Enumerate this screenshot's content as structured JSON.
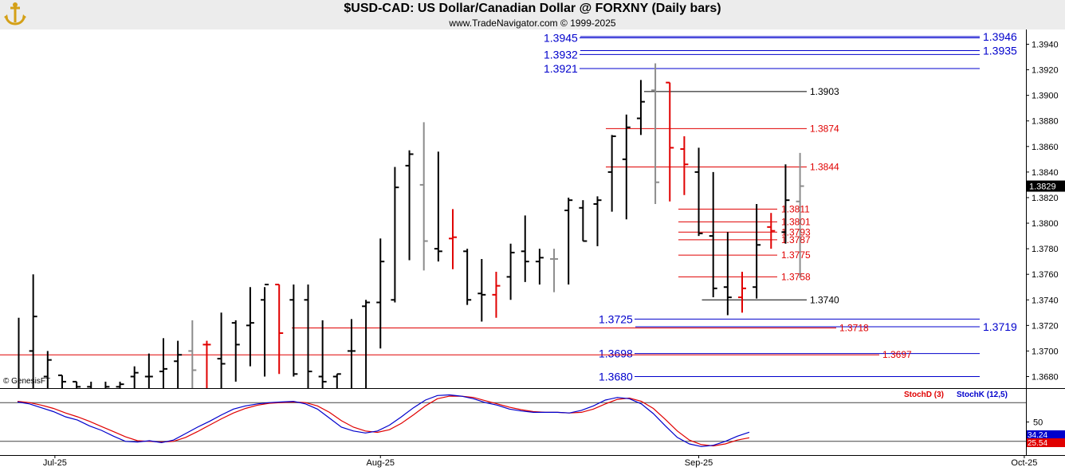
{
  "header": {
    "title": "$USD-CAD:  US Dollar/Canadian Dollar @ FORXNY  (Daily bars)",
    "subtitle": "www.TradeNavigator.com © 1999-2025"
  },
  "copyright": "© GenesisFT",
  "colors": {
    "black": "#000000",
    "red": "#e00000",
    "grey": "#8c8c8c",
    "blue": "#0000cc",
    "stochD": "#e00000",
    "stochK": "#0000cc"
  },
  "chart_data": {
    "type": "ohlc-bar",
    "price_axis": {
      "ylim": [
        1.3668,
        1.3952
      ],
      "ticks": [
        "1.3940",
        "1.3920",
        "1.3900",
        "1.3880",
        "1.3860",
        "1.3840",
        "1.3820",
        "1.3800",
        "1.3780",
        "1.3760",
        "1.3740",
        "1.3720",
        "1.3700",
        "1.3680"
      ],
      "tick_values": [
        1.394,
        1.392,
        1.39,
        1.388,
        1.386,
        1.384,
        1.382,
        1.38,
        1.378,
        1.376,
        1.374,
        1.372,
        1.37,
        1.368
      ],
      "last_price": "1.3829",
      "last_value": 1.3829
    },
    "x_labels": [
      {
        "label": "Jul-25",
        "bar": 2.5
      },
      {
        "label": "Aug-25",
        "bar": 25
      },
      {
        "label": "Sep-25",
        "bar": 47
      },
      {
        "label": "Oct-25",
        "bar": 69.5
      }
    ],
    "bars": [
      {
        "o": 1.367,
        "h": 1.3726,
        "l": 1.367,
        "c": 1.367,
        "col": "black"
      },
      {
        "o": 1.37,
        "h": 1.376,
        "l": 1.367,
        "c": 1.3727,
        "col": "black"
      },
      {
        "o": 1.368,
        "h": 1.37,
        "l": 1.367,
        "c": 1.3693,
        "col": "black"
      },
      {
        "o": 1.3681,
        "h": 1.3681,
        "l": 1.367,
        "c": 1.3676,
        "col": "black"
      },
      {
        "o": 1.3676,
        "h": 1.3676,
        "l": 1.367,
        "c": 1.3672,
        "col": "black"
      },
      {
        "o": 1.3672,
        "h": 1.3676,
        "l": 1.367,
        "c": 1.367,
        "col": "black"
      },
      {
        "o": 1.367,
        "h": 1.3676,
        "l": 1.367,
        "c": 1.3672,
        "col": "black"
      },
      {
        "o": 1.3672,
        "h": 1.3676,
        "l": 1.367,
        "c": 1.3674,
        "col": "black"
      },
      {
        "o": 1.368,
        "h": 1.3688,
        "l": 1.367,
        "c": 1.3683,
        "col": "black"
      },
      {
        "o": 1.368,
        "h": 1.3698,
        "l": 1.367,
        "c": 1.368,
        "col": "black"
      },
      {
        "o": 1.3684,
        "h": 1.371,
        "l": 1.367,
        "c": 1.3686,
        "col": "black"
      },
      {
        "o": 1.3692,
        "h": 1.3708,
        "l": 1.367,
        "c": 1.3697,
        "col": "black"
      },
      {
        "o": 1.37,
        "h": 1.3724,
        "l": 1.367,
        "c": 1.3685,
        "col": "grey"
      },
      {
        "o": 1.3705,
        "h": 1.3708,
        "l": 1.367,
        "c": 1.3705,
        "col": "red"
      },
      {
        "o": 1.3694,
        "h": 1.373,
        "l": 1.367,
        "c": 1.369,
        "col": "black"
      },
      {
        "o": 1.3722,
        "h": 1.3724,
        "l": 1.3676,
        "c": 1.3705,
        "col": "black"
      },
      {
        "o": 1.372,
        "h": 1.375,
        "l": 1.3688,
        "c": 1.3722,
        "col": "black"
      },
      {
        "o": 1.374,
        "h": 1.375,
        "l": 1.368,
        "c": 1.3752,
        "col": "black"
      },
      {
        "o": 1.3752,
        "h": 1.3752,
        "l": 1.3682,
        "c": 1.3714,
        "col": "red"
      },
      {
        "o": 1.374,
        "h": 1.3752,
        "l": 1.368,
        "c": 1.3682,
        "col": "black"
      },
      {
        "o": 1.374,
        "h": 1.3752,
        "l": 1.367,
        "c": 1.3684,
        "col": "black"
      },
      {
        "o": 1.368,
        "h": 1.3724,
        "l": 1.367,
        "c": 1.3676,
        "col": "black"
      },
      {
        "o": 1.368,
        "h": 1.3682,
        "l": 1.367,
        "c": 1.3682,
        "col": "black"
      },
      {
        "o": 1.37,
        "h": 1.3725,
        "l": 1.367,
        "c": 1.37,
        "col": "black"
      },
      {
        "o": 1.3735,
        "h": 1.374,
        "l": 1.367,
        "c": 1.3738,
        "col": "black"
      },
      {
        "o": 1.3738,
        "h": 1.3788,
        "l": 1.3702,
        "c": 1.377,
        "col": "black"
      },
      {
        "o": 1.374,
        "h": 1.3844,
        "l": 1.3738,
        "c": 1.3828,
        "col": "black"
      },
      {
        "o": 1.3845,
        "h": 1.3857,
        "l": 1.3771,
        "c": 1.3854,
        "col": "black"
      },
      {
        "o": 1.383,
        "h": 1.3879,
        "l": 1.3763,
        "c": 1.3786,
        "col": "grey"
      },
      {
        "o": 1.378,
        "h": 1.3856,
        "l": 1.377,
        "c": 1.3778,
        "col": "black"
      },
      {
        "o": 1.3788,
        "h": 1.3811,
        "l": 1.3764,
        "c": 1.3789,
        "col": "red"
      },
      {
        "o": 1.3778,
        "h": 1.378,
        "l": 1.3736,
        "c": 1.374,
        "col": "black"
      },
      {
        "o": 1.3745,
        "h": 1.3772,
        "l": 1.3723,
        "c": 1.3744,
        "col": "black"
      },
      {
        "o": 1.3744,
        "h": 1.3762,
        "l": 1.3726,
        "c": 1.3751,
        "col": "red"
      },
      {
        "o": 1.3758,
        "h": 1.3784,
        "l": 1.374,
        "c": 1.3777,
        "col": "black"
      },
      {
        "o": 1.3778,
        "h": 1.3806,
        "l": 1.3754,
        "c": 1.377,
        "col": "black"
      },
      {
        "o": 1.377,
        "h": 1.378,
        "l": 1.3752,
        "c": 1.3773,
        "col": "black"
      },
      {
        "o": 1.3772,
        "h": 1.378,
        "l": 1.3746,
        "c": 1.3772,
        "col": "grey"
      },
      {
        "o": 1.381,
        "h": 1.382,
        "l": 1.3752,
        "c": 1.3818,
        "col": "black"
      },
      {
        "o": 1.3812,
        "h": 1.3818,
        "l": 1.3786,
        "c": 1.3786,
        "col": "black"
      },
      {
        "o": 1.3815,
        "h": 1.3821,
        "l": 1.3782,
        "c": 1.3818,
        "col": "black"
      },
      {
        "o": 1.384,
        "h": 1.3869,
        "l": 1.3809,
        "c": 1.3868,
        "col": "black"
      },
      {
        "o": 1.385,
        "h": 1.3885,
        "l": 1.3803,
        "c": 1.3875,
        "col": "black"
      },
      {
        "o": 1.3882,
        "h": 1.3912,
        "l": 1.3869,
        "c": 1.3895,
        "col": "black"
      },
      {
        "o": 1.3904,
        "h": 1.3925,
        "l": 1.3815,
        "c": 1.3832,
        "col": "grey"
      },
      {
        "o": 1.391,
        "h": 1.391,
        "l": 1.3817,
        "c": 1.3859,
        "col": "red"
      },
      {
        "o": 1.3858,
        "h": 1.3868,
        "l": 1.3822,
        "c": 1.3846,
        "col": "red"
      },
      {
        "o": 1.384,
        "h": 1.3859,
        "l": 1.379,
        "c": 1.3792,
        "col": "black"
      },
      {
        "o": 1.379,
        "h": 1.384,
        "l": 1.3742,
        "c": 1.3749,
        "col": "black"
      },
      {
        "o": 1.375,
        "h": 1.3793,
        "l": 1.3728,
        "c": 1.3742,
        "col": "black"
      },
      {
        "o": 1.3742,
        "h": 1.3762,
        "l": 1.373,
        "c": 1.3749,
        "col": "red"
      },
      {
        "o": 1.375,
        "h": 1.3815,
        "l": 1.3741,
        "c": 1.3783,
        "col": "black"
      },
      {
        "o": 1.3797,
        "h": 1.3808,
        "l": 1.378,
        "c": 1.3794,
        "col": "red"
      },
      {
        "o": 1.3793,
        "h": 1.3846,
        "l": 1.3784,
        "c": 1.3818,
        "col": "black"
      },
      {
        "o": 1.3817,
        "h": 1.3855,
        "l": 1.3757,
        "c": 1.3829,
        "col": "grey"
      }
    ],
    "levels_blue": [
      {
        "label": "1.3945",
        "value": 1.3945,
        "side": "left",
        "lx": 683
      },
      {
        "label": "1.3946",
        "value": 1.3946,
        "side": "right"
      },
      {
        "label": "1.3935",
        "value": 1.3935,
        "side": "right"
      },
      {
        "label": "1.3932",
        "value": 1.3932,
        "side": "left",
        "lx": 683
      },
      {
        "label": "1.3921",
        "value": 1.3921,
        "side": "left",
        "lx": 683
      },
      {
        "label": "1.3725",
        "value": 1.3725,
        "side": "left",
        "lx": 752
      },
      {
        "label": "1.3719",
        "value": 1.3719,
        "side": "right"
      },
      {
        "label": "1.3698",
        "value": 1.3698,
        "side": "left",
        "lx": 752
      },
      {
        "label": "1.3680",
        "value": 1.368,
        "side": "left",
        "lx": 752
      }
    ],
    "levels_black": [
      {
        "label": "1.3903",
        "value": 1.3903,
        "from_bar": 43
      },
      {
        "label": "1.3740",
        "value": 1.374,
        "from_bar": 47
      }
    ],
    "levels_red": [
      {
        "label": "1.3874",
        "value": 1.3874,
        "from_bar": 43
      },
      {
        "label": "1.3844",
        "value": 1.3844,
        "from_bar": 43
      },
      {
        "label": "1.3811",
        "value": 1.3811,
        "from_bar": 48
      },
      {
        "label": "1.3801",
        "value": 1.3801,
        "from_bar": 48
      },
      {
        "label": "1.3793",
        "value": 1.3793,
        "from_bar": 48
      },
      {
        "label": "1.3787",
        "value": 1.3787,
        "from_bar": 48
      },
      {
        "label": "1.3775",
        "value": 1.3775,
        "from_bar": 48
      },
      {
        "label": "1.3758",
        "value": 1.3758,
        "from_bar": 48
      },
      {
        "label": "1.3718",
        "value": 1.3718,
        "from_bar": 20
      },
      {
        "label": "1.3697",
        "value": 1.3697,
        "from_bar": 0
      }
    ],
    "stochastic": {
      "legend": [
        {
          "name": "StochD (3)",
          "color": "red"
        },
        {
          "name": "StochK (12,5)",
          "color": "blue"
        }
      ],
      "ylim": [
        0,
        100
      ],
      "tick_label": "50",
      "tick_value": 50,
      "upper_line": 80,
      "lower_line": 20,
      "last_k": "34.24",
      "last_d": "25.54",
      "k": [
        81,
        78,
        72,
        66,
        58,
        53,
        44,
        37,
        28,
        20,
        19,
        21,
        18,
        22,
        32,
        42,
        51,
        61,
        70,
        75,
        78,
        80,
        81,
        82,
        78,
        70,
        56,
        42,
        36,
        33,
        36,
        45,
        58,
        72,
        84,
        91,
        92,
        90,
        86,
        80,
        76,
        70,
        67,
        65,
        65,
        65,
        64,
        68,
        75,
        84,
        88,
        86,
        78,
        63,
        44,
        26,
        16,
        12,
        14,
        20,
        28,
        34.24
      ],
      "d": [
        82,
        80,
        76,
        71,
        64,
        58,
        51,
        43,
        35,
        27,
        21,
        20,
        19,
        20,
        26,
        35,
        45,
        55,
        64,
        71,
        76,
        79,
        80,
        81,
        80,
        75,
        65,
        52,
        42,
        36,
        34,
        38,
        48,
        61,
        75,
        86,
        90,
        90,
        88,
        83,
        78,
        73,
        69,
        66,
        65,
        65,
        64,
        65,
        70,
        78,
        85,
        87,
        82,
        71,
        54,
        36,
        22,
        15,
        13,
        16,
        22,
        25.54
      ]
    }
  }
}
